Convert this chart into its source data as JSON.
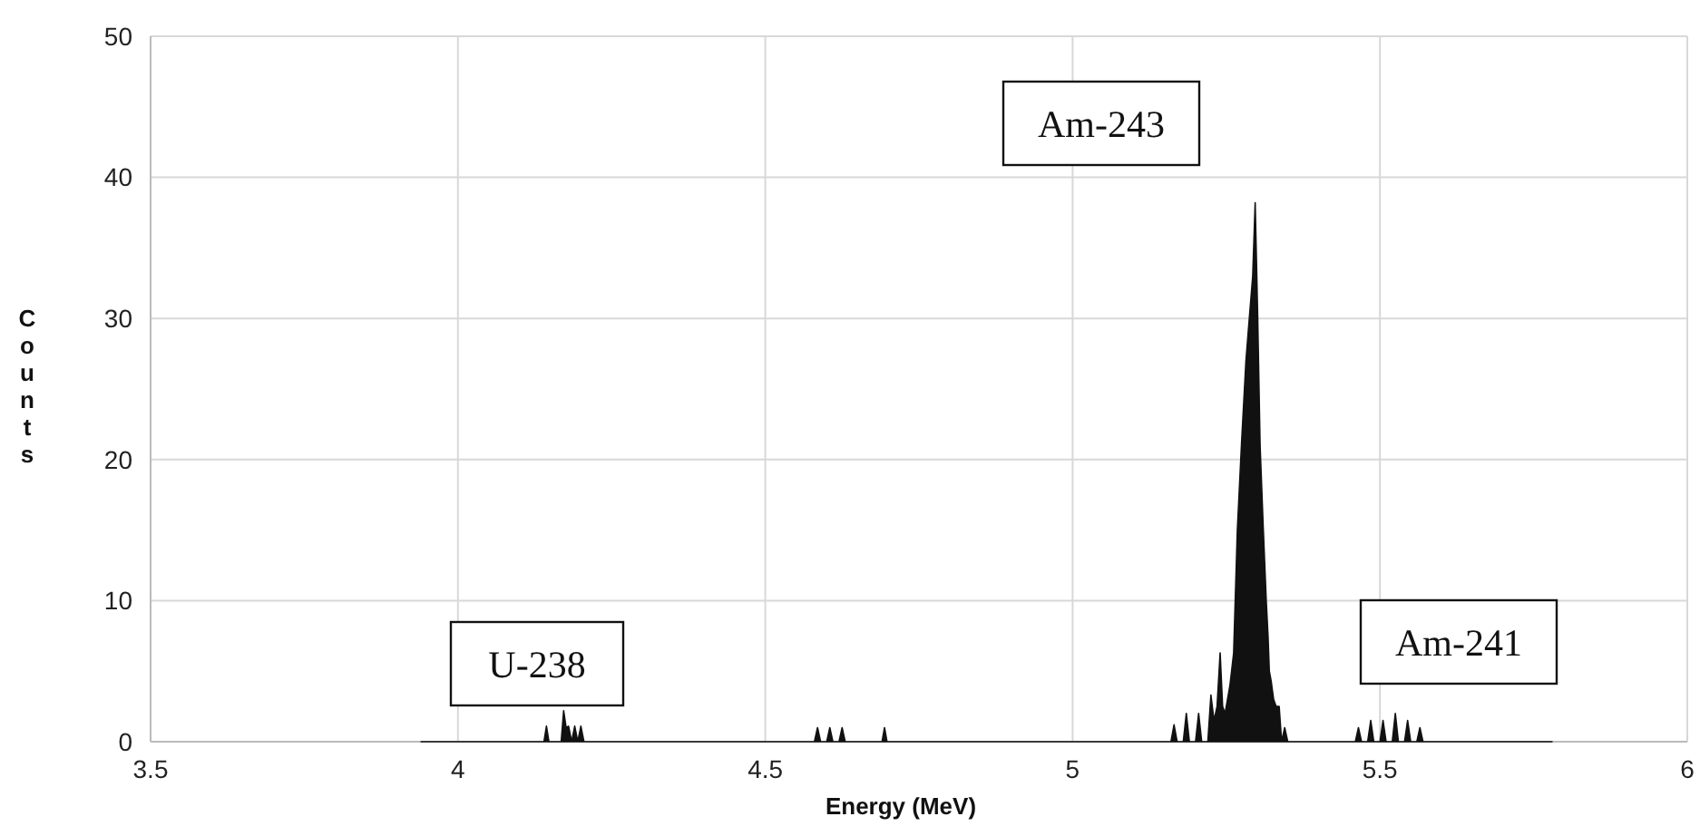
{
  "chart_data": {
    "type": "area",
    "xlabel": "Energy (MeV)",
    "ylabel": "Counts",
    "xlim": [
      3.5,
      6
    ],
    "ylim": [
      0,
      50
    ],
    "xticks": [
      3.5,
      4,
      4.5,
      5,
      5.5,
      6
    ],
    "yticks": [
      0,
      10,
      20,
      30,
      40,
      50
    ],
    "grid": true,
    "series": [
      {
        "color": "#111111",
        "x": [
          3.94,
          4.14,
          4.144,
          4.148,
          4.168,
          4.172,
          4.176,
          4.18,
          4.185,
          4.19,
          4.195,
          4.2,
          4.205,
          4.21,
          4.58,
          4.585,
          4.59,
          4.6,
          4.605,
          4.61,
          4.62,
          4.625,
          4.63,
          4.69,
          4.694,
          4.698,
          5.15,
          5.16,
          5.165,
          5.17,
          5.18,
          5.185,
          5.19,
          5.2,
          5.205,
          5.21,
          5.22,
          5.225,
          5.23,
          5.235,
          5.24,
          5.244,
          5.248,
          5.256,
          5.262,
          5.268,
          5.275,
          5.282,
          5.288,
          5.293,
          5.297,
          5.301,
          5.305,
          5.31,
          5.315,
          5.318,
          5.32,
          5.323,
          5.327,
          5.331,
          5.336,
          5.34,
          5.345,
          5.35,
          5.355,
          5.45,
          5.46,
          5.465,
          5.47,
          5.48,
          5.485,
          5.49,
          5.5,
          5.505,
          5.51,
          5.52,
          5.525,
          5.53,
          5.54,
          5.545,
          5.55,
          5.56,
          5.565,
          5.57,
          5.58,
          5.78
        ],
        "values": [
          0,
          0,
          1.1,
          0,
          0,
          2.2,
          1,
          1.1,
          0,
          1.1,
          0,
          1.1,
          0,
          0,
          0,
          1,
          0,
          0,
          1,
          0,
          0,
          1,
          0,
          0,
          1,
          0,
          0,
          0,
          1.2,
          0,
          0,
          2,
          0,
          0,
          2,
          0,
          0,
          3.3,
          1.5,
          2.5,
          6.3,
          2.5,
          2,
          4,
          6.3,
          15,
          21.3,
          27,
          30.3,
          33,
          38.2,
          30.3,
          21,
          15.3,
          10,
          7.4,
          5,
          4.3,
          3,
          2.5,
          2.5,
          0,
          1,
          0,
          0,
          0,
          0,
          1,
          0,
          0,
          1.5,
          0,
          0,
          1.5,
          0,
          0,
          2,
          0,
          0,
          1.5,
          0,
          0,
          1,
          0,
          0,
          0
        ]
      }
    ],
    "annotations": [
      "Am-243",
      "U-238",
      "Am-241"
    ]
  }
}
